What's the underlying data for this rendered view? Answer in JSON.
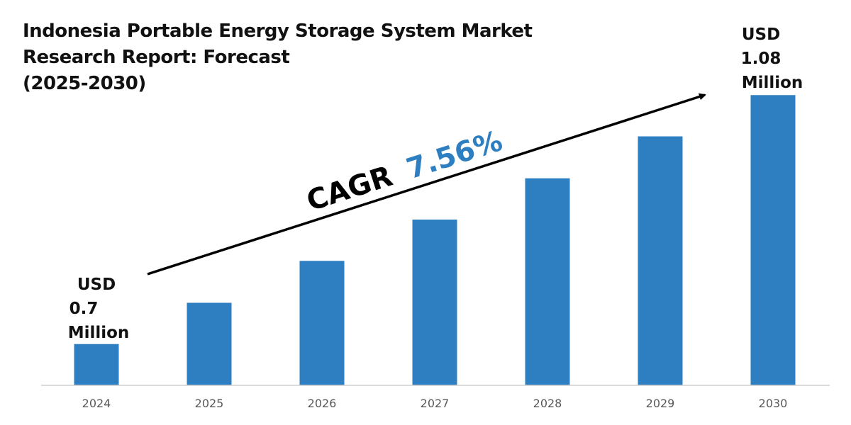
{
  "chart_data": {
    "type": "bar",
    "title_lines": [
      "Indonesia Portable Energy Storage System Market",
      "Research Report: Forecast",
      "(2025-2030)"
    ],
    "categories": [
      "2024",
      "2025",
      "2026",
      "2027",
      "2028",
      "2029",
      "2030"
    ],
    "values": [
      0.7,
      0.763,
      0.827,
      0.89,
      0.953,
      1.017,
      1.08
    ],
    "unit": "USD Million",
    "ylim": [
      0.637,
      1.13
    ],
    "grid": false,
    "bar_color": "#2e7fc1",
    "annotations": {
      "start_label": [
        "USD",
        "0.7",
        "Million"
      ],
      "end_label": [
        "USD",
        "1.08",
        "Million"
      ],
      "cagr_label": "CAGR",
      "cagr_value": "7.56%",
      "cagr_color": "#2e7fc1"
    }
  }
}
